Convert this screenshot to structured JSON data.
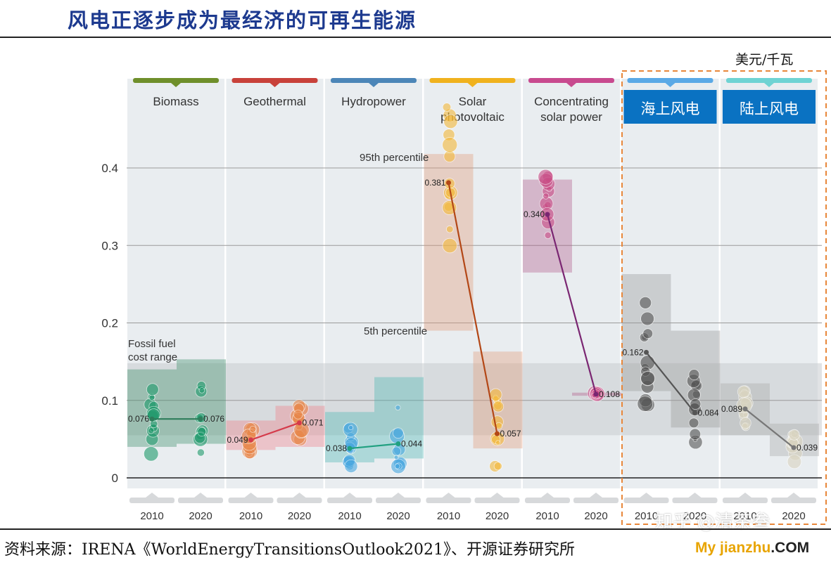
{
  "page": {
    "title": "风电正逐步成为最经济的可再生能源",
    "unit": "美元/千瓦",
    "source": "资料来源：IRENA《WorldEnergyTransitionsOutlook2021》、开源证券研究所",
    "watermark_1": "知乎 @清茶叁",
    "watermark_2a": "My jianzhu",
    "watermark_2b": ".COM"
  },
  "chart_data": {
    "type": "scatter",
    "ylim": [
      0,
      0.45
    ],
    "yticks": [
      "0",
      "0.1",
      "0.2",
      "0.3",
      "0.4"
    ],
    "ytick_values": [
      0,
      0.1,
      0.2,
      0.3,
      0.4
    ],
    "fossil_fuel_range": [
      0.055,
      0.148
    ],
    "annotations": {
      "fossil": [
        "Fossil fuel",
        "cost range"
      ],
      "p95": "95th percentile",
      "p5": "5th percentile"
    },
    "categories": [
      {
        "name": [
          "Biomass"
        ],
        "color": "#6f8f2b",
        "dot": "#1f9a6c",
        "line": "#2e7d5b",
        "years": [
          "2010",
          "2020"
        ],
        "weighted_avg": [
          0.076,
          0.076
        ],
        "labels": [
          "0.076",
          "0.076"
        ],
        "p5": [
          0.04,
          0.044
        ],
        "p95": [
          0.14,
          0.153
        ],
        "box_color": "#3c8f6a"
      },
      {
        "name": [
          "Geothermal"
        ],
        "color": "#c8413a",
        "dot": "#e8874a",
        "line": "#d53a4a",
        "years": [
          "2010",
          "2020"
        ],
        "weighted_avg": [
          0.049,
          0.071
        ],
        "labels": [
          "0.049",
          "0.071"
        ],
        "p5": [
          0.036,
          0.04
        ],
        "p95": [
          0.074,
          0.093
        ],
        "box_color": "#ef7f88"
      },
      {
        "name": [
          "Hydropower"
        ],
        "color": "#4c86b8",
        "dot": "#49a8e0",
        "line": "#20a080",
        "years": [
          "2010",
          "2020"
        ],
        "weighted_avg": [
          0.038,
          0.044
        ],
        "labels": [
          "0.038",
          "0.044"
        ],
        "p5": [
          0.02,
          0.025
        ],
        "p95": [
          0.085,
          0.13
        ],
        "box_color": "#4db6b3"
      },
      {
        "name": [
          "Solar",
          "photovoltaic"
        ],
        "color": "#f0b21e",
        "dot": "#f4b93a",
        "line": "#b34716",
        "years": [
          "2010",
          "2020"
        ],
        "weighted_avg": [
          0.381,
          0.057
        ],
        "labels": [
          "0.381",
          "0.057"
        ],
        "p5": [
          0.19,
          0.038
        ],
        "p95": [
          0.418,
          0.163
        ],
        "box_color": "#e39a79"
      },
      {
        "name": [
          "Concentrating",
          "solar power"
        ],
        "color": "#c84a8f",
        "dot": "#c94d86",
        "line": "#7a2672",
        "years": [
          "2010",
          "2020"
        ],
        "weighted_avg": [
          0.34,
          0.108
        ],
        "labels": [
          "0.340",
          "0.108"
        ],
        "p5": [
          0.265,
          0.106
        ],
        "p95": [
          0.385,
          0.11
        ],
        "box_color": "#b25c8b"
      },
      {
        "name": [
          "海上风电"
        ],
        "color": "#5aa9e6",
        "dot": "#555555",
        "line": "#555555",
        "years": [
          "2010",
          "2020"
        ],
        "weighted_avg": [
          0.162,
          0.084
        ],
        "labels": [
          "0.162",
          "0.084"
        ],
        "p5": [
          0.112,
          0.065
        ],
        "p95": [
          0.263,
          0.19
        ],
        "box_color": "#999999",
        "header_box": true
      },
      {
        "name": [
          "陆上风电"
        ],
        "color": "#6fd3d3",
        "dot": "#d9d4c0",
        "line": "#777777",
        "years": [
          "2010",
          "2020"
        ],
        "weighted_avg": [
          0.089,
          0.039
        ],
        "labels": [
          "0.089",
          "0.039"
        ],
        "p5": [
          0.055,
          0.028
        ],
        "p95": [
          0.122,
          0.07
        ],
        "box_color": "#a8a8a8",
        "header_box": true
      }
    ]
  }
}
